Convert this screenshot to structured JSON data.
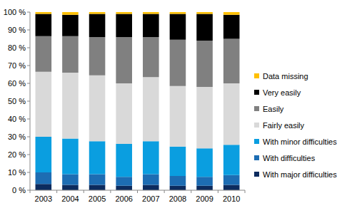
{
  "chart_data": {
    "type": "bar",
    "stacked": true,
    "grid": false,
    "legend": "right",
    "categories": [
      "2003",
      "2004",
      "2005",
      "2006",
      "2007",
      "2008",
      "2009",
      "2010"
    ],
    "series": [
      {
        "name": "With major difficulties",
        "color": "#0c2b5e",
        "values": [
          3.5,
          3,
          3,
          2.5,
          3,
          2.5,
          2.5,
          3
        ]
      },
      {
        "name": "With difficulties",
        "color": "#1d6db3",
        "values": [
          6.5,
          6,
          6,
          5,
          6,
          5.5,
          5,
          5.5
        ]
      },
      {
        "name": "With minor difficulties",
        "color": "#0a9ee0",
        "values": [
          20,
          20,
          18.5,
          18.5,
          18.5,
          16.5,
          16,
          17
        ]
      },
      {
        "name": "Fairly easily",
        "color": "#d9d9d9",
        "values": [
          36.5,
          37,
          37,
          34,
          36,
          34,
          34.5,
          34.5
        ]
      },
      {
        "name": "Easily",
        "color": "#808080",
        "values": [
          20,
          20.5,
          21.5,
          26,
          22.5,
          26,
          26,
          25
        ]
      },
      {
        "name": "Very easily",
        "color": "#000000",
        "values": [
          12.5,
          12,
          13,
          13,
          13,
          14.5,
          15,
          13.5
        ]
      },
      {
        "name": "Data missing",
        "color": "#ffc000",
        "values": [
          1,
          1.5,
          1,
          1,
          1,
          1,
          1,
          1.5
        ]
      }
    ],
    "ylim": [
      0,
      100
    ],
    "yticks": [
      {
        "value": 0,
        "label": "0 %"
      },
      {
        "value": 10,
        "label": "10 %"
      },
      {
        "value": 20,
        "label": "20 %"
      },
      {
        "value": 30,
        "label": "30 %"
      },
      {
        "value": 40,
        "label": "40 %"
      },
      {
        "value": 50,
        "label": "50 %"
      },
      {
        "value": 60,
        "label": "60 %"
      },
      {
        "value": 70,
        "label": "70 %"
      },
      {
        "value": 80,
        "label": "80 %"
      },
      {
        "value": 90,
        "label": "90 %"
      },
      {
        "value": 100,
        "label": "100 %"
      }
    ]
  }
}
